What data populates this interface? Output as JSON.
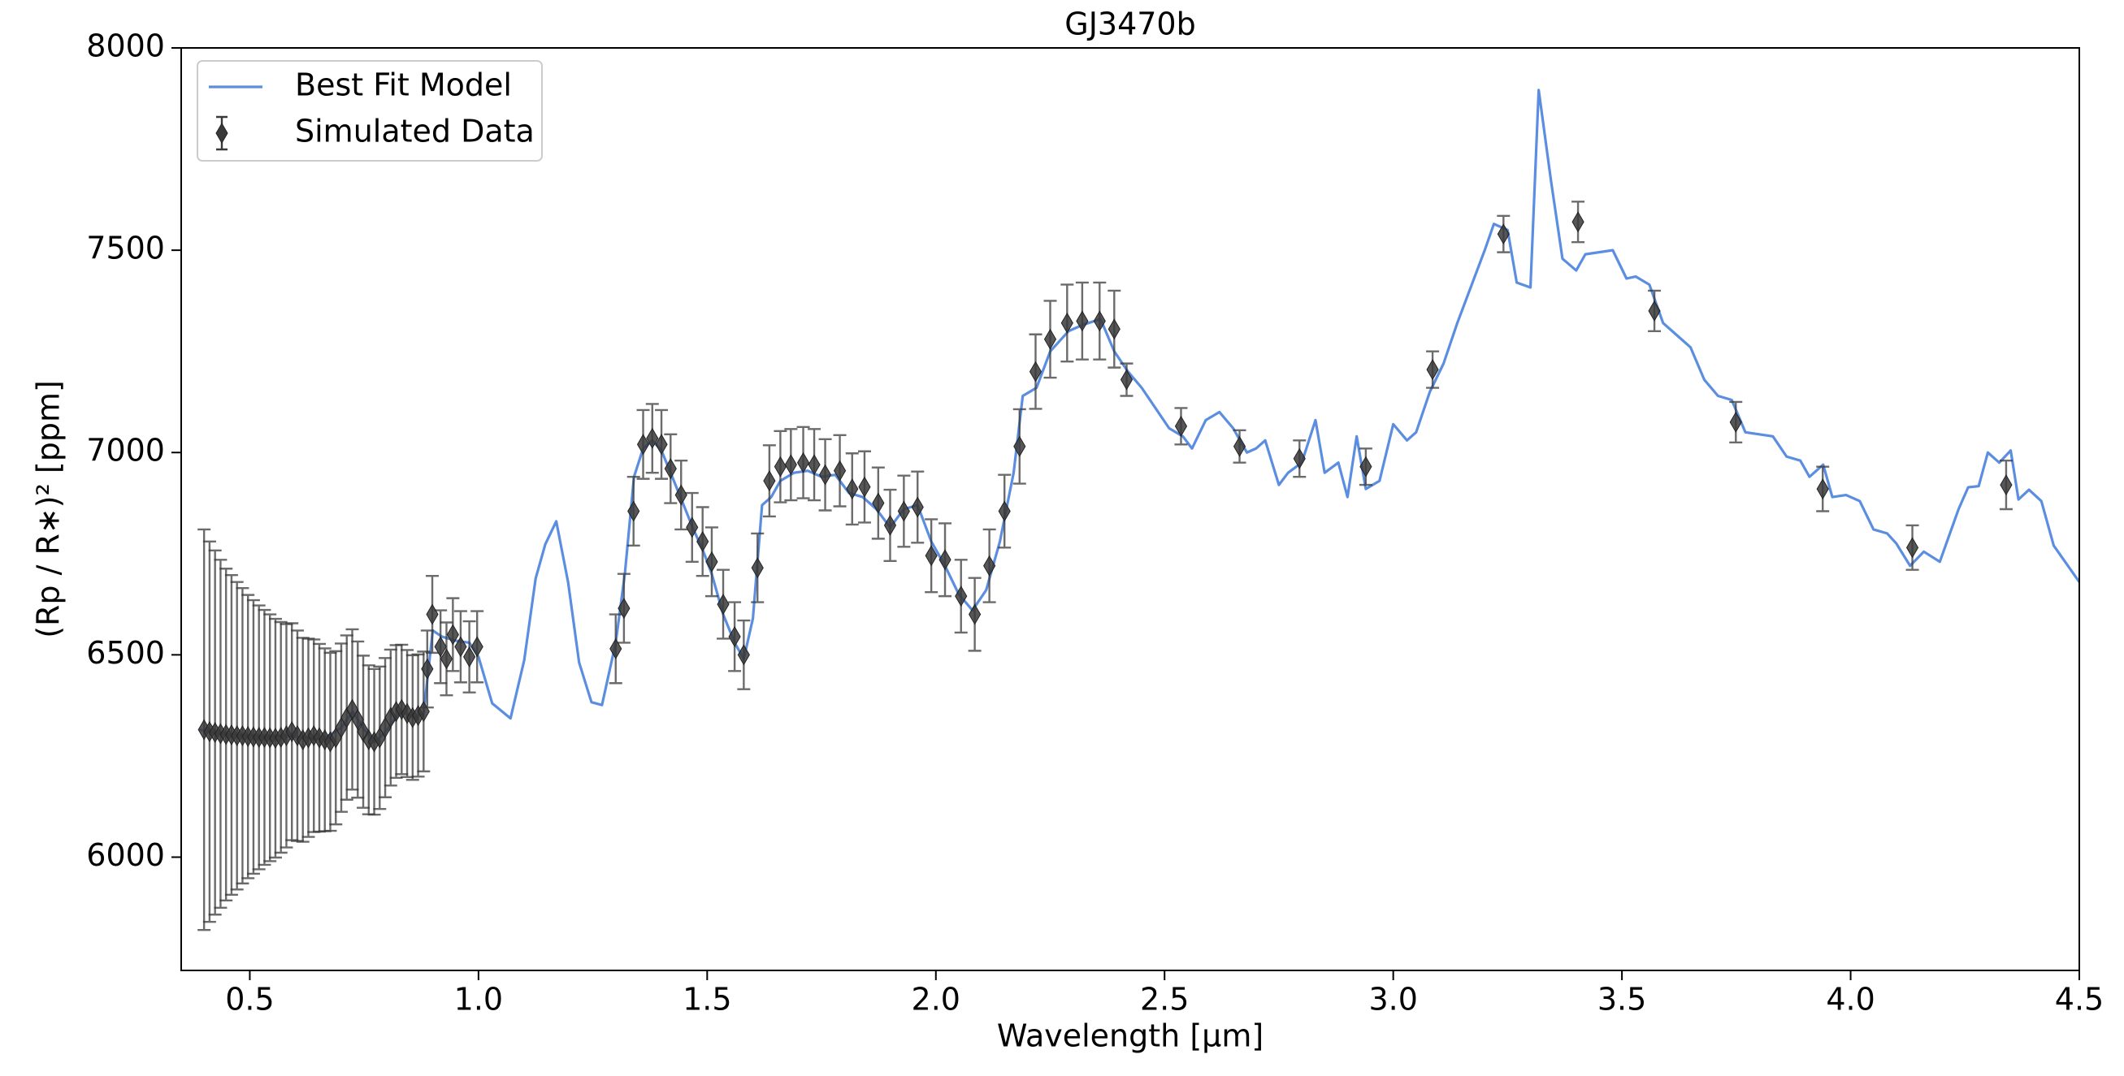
{
  "chart_data": {
    "type": "line",
    "title": "GJ3470b",
    "xlabel": "Wavelength [μm]",
    "ylabel": "(Rp / R∗)² [ppm]",
    "xlim": [
      0.35,
      4.5
    ],
    "ylim": [
      5720,
      8000
    ],
    "xticks": [
      0.5,
      {
        "value": 1,
        "label": "1.0"
      },
      1.5,
      {
        "value": 2,
        "label": "2.0"
      },
      2.5,
      {
        "value": 3,
        "label": "3.0"
      },
      3.5,
      {
        "value": 4,
        "label": "4.0"
      },
      4.5
    ],
    "yticks": [
      6000,
      6500,
      7000,
      7500,
      8000
    ],
    "legend": "upper left",
    "series": [
      {
        "name": "Best Fit Model",
        "color": "#5b8ee0",
        "x": [
          0.39,
          0.42,
          0.46,
          0.5,
          0.54,
          0.58,
          0.62,
          0.66,
          0.7,
          0.725,
          0.75,
          0.775,
          0.8,
          0.83,
          0.86,
          0.88,
          0.9,
          0.92,
          0.95,
          0.98,
          1.0,
          1.03,
          1.07,
          1.1,
          1.125,
          1.146,
          1.17,
          1.196,
          1.22,
          1.247,
          1.27,
          1.3,
          1.32,
          1.34,
          1.36,
          1.38,
          1.4,
          1.42,
          1.445,
          1.47,
          1.49,
          1.51,
          1.535,
          1.56,
          1.58,
          1.6,
          1.62,
          1.64,
          1.66,
          1.69,
          1.72,
          1.75,
          1.78,
          1.81,
          1.84,
          1.87,
          1.9,
          1.93,
          1.96,
          1.99,
          2.02,
          2.05,
          2.08,
          2.11,
          2.14,
          2.17,
          2.19,
          2.22,
          2.25,
          2.29,
          2.32,
          2.36,
          2.39,
          2.42,
          2.45,
          2.48,
          2.51,
          2.54,
          2.56,
          2.59,
          2.62,
          2.65,
          2.68,
          2.7,
          2.72,
          2.75,
          2.77,
          2.8,
          2.83,
          2.85,
          2.88,
          2.9,
          2.92,
          2.94,
          2.97,
          3.0,
          3.03,
          3.05,
          3.08,
          3.11,
          3.14,
          3.17,
          3.2,
          3.22,
          3.25,
          3.27,
          3.3,
          3.318,
          3.345,
          3.37,
          3.4,
          3.42,
          3.45,
          3.48,
          3.51,
          3.53,
          3.56,
          3.59,
          3.62,
          3.65,
          3.68,
          3.71,
          3.74,
          3.77,
          3.8,
          3.83,
          3.86,
          3.89,
          3.91,
          3.94,
          3.96,
          3.99,
          4.02,
          4.05,
          4.08,
          4.1,
          4.13,
          4.16,
          4.195,
          4.236,
          4.257,
          4.28,
          4.3,
          4.325,
          4.35,
          4.367,
          4.39,
          4.417,
          4.444,
          4.5
        ],
        "values": [
          6315,
          6308,
          6302,
          6300,
          6297,
          6300,
          6295,
          6292,
          6320,
          6360,
          6315,
          6285,
          6315,
          6360,
          6345,
          6355,
          6560,
          6545,
          6535,
          6530,
          6495,
          6380,
          6343,
          6487,
          6689,
          6773,
          6830,
          6679,
          6481,
          6383,
          6376,
          6530,
          6700,
          6940,
          7010,
          7030,
          7005,
          6950,
          6880,
          6810,
          6760,
          6700,
          6600,
          6530,
          6490,
          6590,
          6870,
          6890,
          6930,
          6950,
          6955,
          6940,
          6945,
          6900,
          6890,
          6860,
          6815,
          6860,
          6870,
          6780,
          6720,
          6650,
          6610,
          6660,
          6780,
          6950,
          7140,
          7160,
          7250,
          7300,
          7315,
          7330,
          7250,
          7200,
          7160,
          7110,
          7060,
          7040,
          7010,
          7080,
          7100,
          7060,
          7000,
          7010,
          7030,
          6920,
          6950,
          6975,
          7080,
          6950,
          6975,
          6890,
          7040,
          6910,
          6930,
          7070,
          7030,
          7050,
          7150,
          7220,
          7320,
          7410,
          7500,
          7565,
          7550,
          7420,
          7408,
          7896,
          7671,
          7479,
          7450,
          7490,
          7495,
          7500,
          7430,
          7435,
          7415,
          7320,
          7290,
          7260,
          7180,
          7140,
          7130,
          7050,
          7045,
          7040,
          6990,
          6980,
          6940,
          6970,
          6890,
          6895,
          6880,
          6810,
          6800,
          6775,
          6720,
          6755,
          6730,
          6860,
          6914,
          6917,
          7000,
          6975,
          7005,
          6884,
          6908,
          6880,
          6770,
          6680
        ]
      },
      {
        "name": "Simulated Data",
        "color": "#3a3a3a",
        "x": [
          0.4,
          0.412,
          0.424,
          0.436,
          0.448,
          0.46,
          0.472,
          0.484,
          0.496,
          0.508,
          0.52,
          0.532,
          0.544,
          0.556,
          0.568,
          0.58,
          0.592,
          0.604,
          0.616,
          0.628,
          0.64,
          0.652,
          0.664,
          0.676,
          0.688,
          0.7,
          0.712,
          0.724,
          0.736,
          0.748,
          0.76,
          0.772,
          0.784,
          0.796,
          0.808,
          0.82,
          0.832,
          0.844,
          0.856,
          0.868,
          0.88,
          0.888,
          0.899,
          0.917,
          0.93,
          0.944,
          0.961,
          0.98,
          0.997,
          1.3,
          1.318,
          1.339,
          1.36,
          1.38,
          1.4,
          1.42,
          1.443,
          1.467,
          1.49,
          1.51,
          1.535,
          1.56,
          1.58,
          1.61,
          1.636,
          1.66,
          1.683,
          1.71,
          1.734,
          1.758,
          1.79,
          1.817,
          1.844,
          1.874,
          1.9,
          1.93,
          1.96,
          1.99,
          2.02,
          2.055,
          2.085,
          2.117,
          2.15,
          2.183,
          2.218,
          2.25,
          2.287,
          2.32,
          2.358,
          2.39,
          2.417,
          2.536,
          2.664,
          2.795,
          2.94,
          3.086,
          3.241,
          3.404,
          3.571,
          3.749,
          3.939,
          4.135,
          4.34
        ],
        "values": [
          6315,
          6310,
          6308,
          6305,
          6303,
          6302,
          6300,
          6300,
          6298,
          6297,
          6296,
          6296,
          6295,
          6294,
          6296,
          6300,
          6310,
          6300,
          6290,
          6295,
          6300,
          6295,
          6290,
          6285,
          6295,
          6320,
          6345,
          6365,
          6340,
          6310,
          6290,
          6285,
          6295,
          6320,
          6345,
          6360,
          6365,
          6355,
          6345,
          6350,
          6360,
          6465,
          6600,
          6520,
          6490,
          6550,
          6520,
          6495,
          6520,
          6515,
          6615,
          6855,
          7020,
          7035,
          7020,
          6960,
          6895,
          6815,
          6780,
          6730,
          6625,
          6545,
          6500,
          6715,
          6930,
          6965,
          6970,
          6975,
          6970,
          6945,
          6955,
          6910,
          6915,
          6875,
          6820,
          6855,
          6865,
          6745,
          6735,
          6645,
          6600,
          6720,
          6855,
          7015,
          7200,
          7280,
          7320,
          7325,
          7325,
          7305,
          7180,
          7065,
          7015,
          6985,
          6965,
          7205,
          7540,
          7570,
          7350,
          7075,
          6910,
          6765,
          6920
        ],
        "errors": [
          495,
          470,
          450,
          430,
          410,
          395,
          380,
          365,
          350,
          338,
          326,
          315,
          305,
          295,
          285,
          276,
          268,
          260,
          252,
          245,
          238,
          232,
          226,
          220,
          214,
          208,
          203,
          198,
          193,
          188,
          184,
          180,
          176,
          172,
          168,
          164,
          160,
          157,
          154,
          151,
          148,
          95,
          95,
          90,
          90,
          90,
          88,
          88,
          88,
          85,
          85,
          85,
          85,
          85,
          85,
          85,
          85,
          85,
          85,
          85,
          85,
          85,
          85,
          85,
          88,
          88,
          88,
          88,
          88,
          88,
          88,
          88,
          88,
          88,
          88,
          88,
          88,
          90,
          90,
          90,
          90,
          90,
          90,
          92,
          92,
          95,
          95,
          95,
          95,
          95,
          40,
          45,
          40,
          45,
          45,
          45,
          45,
          50,
          50,
          50,
          55,
          55,
          60
        ]
      }
    ]
  }
}
